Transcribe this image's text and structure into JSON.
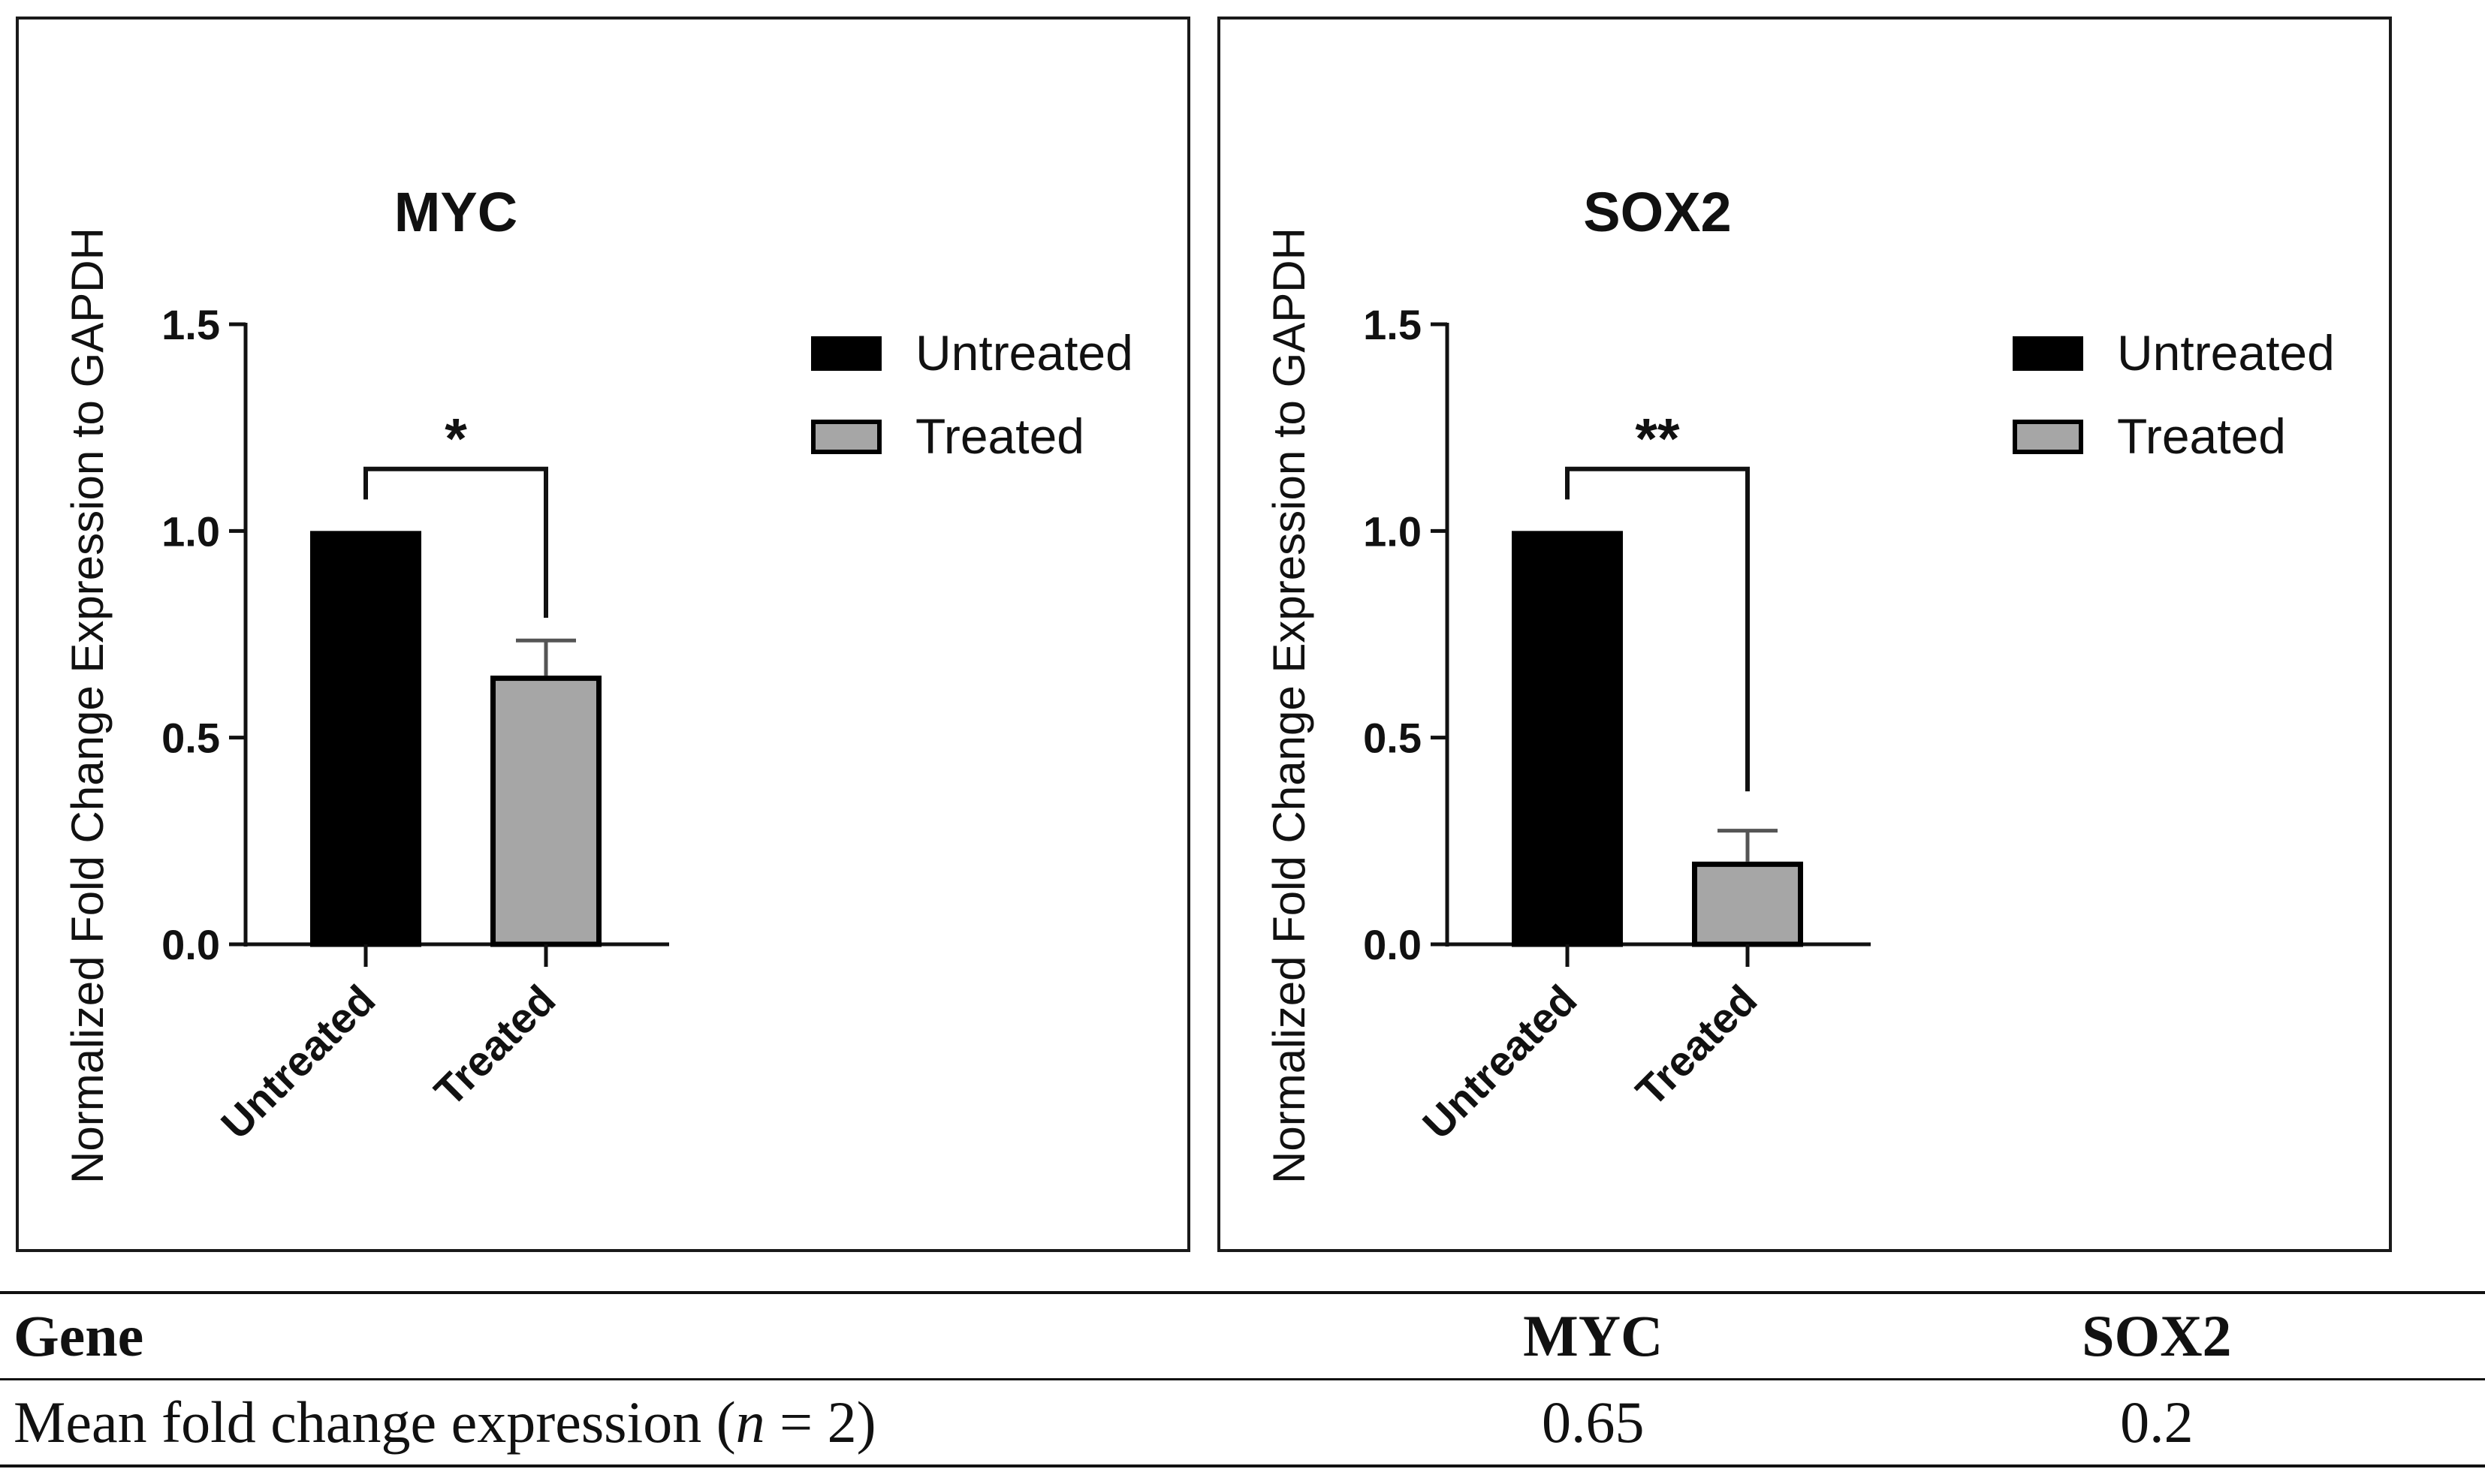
{
  "chart_data": [
    {
      "type": "bar",
      "title": "MYC",
      "xlabel": "",
      "ylabel": "Normalized Fold Change Expression to GAPDH",
      "categories": [
        "Untreated",
        "Treated"
      ],
      "series": [
        {
          "name": "Untreated",
          "values": [
            1.0,
            null
          ],
          "color": "#000000"
        },
        {
          "name": "Treated",
          "values": [
            null,
            0.65
          ],
          "color": "#a6a6a6",
          "error": 0.085
        }
      ],
      "ylim": [
        0,
        1.5
      ],
      "yticks": [
        "0.0",
        "0.5",
        "1.0",
        "1.5"
      ],
      "significance": {
        "label": "*",
        "left": 1.0,
        "right": 0.79
      },
      "legend": {
        "position": "top-right",
        "entries": [
          "Untreated",
          "Treated"
        ]
      },
      "grid": false
    },
    {
      "type": "bar",
      "title": "SOX2",
      "xlabel": "",
      "ylabel": "Normalized Fold Change Expression to GAPDH",
      "categories": [
        "Untreated",
        "Treated"
      ],
      "series": [
        {
          "name": "Untreated",
          "values": [
            1.0,
            null
          ],
          "color": "#000000"
        },
        {
          "name": "Treated",
          "values": [
            null,
            0.2
          ],
          "color": "#a6a6a6",
          "error": 0.075
        }
      ],
      "ylim": [
        0,
        1.5
      ],
      "yticks": [
        "0.0",
        "0.5",
        "1.0",
        "1.5"
      ],
      "significance": {
        "label": "**",
        "left": 1.0,
        "right": 0.37
      },
      "legend": {
        "position": "top-right",
        "entries": [
          "Untreated",
          "Treated"
        ]
      },
      "grid": false
    }
  ],
  "table": {
    "header_label": "Gene",
    "header_a": "MYC",
    "header_b": "SOX2",
    "row_label_pre": "Mean fold change expression (",
    "row_label_n": "n",
    "row_label_post": " = 2)",
    "row_a": "0.65",
    "row_b": "0.2"
  }
}
